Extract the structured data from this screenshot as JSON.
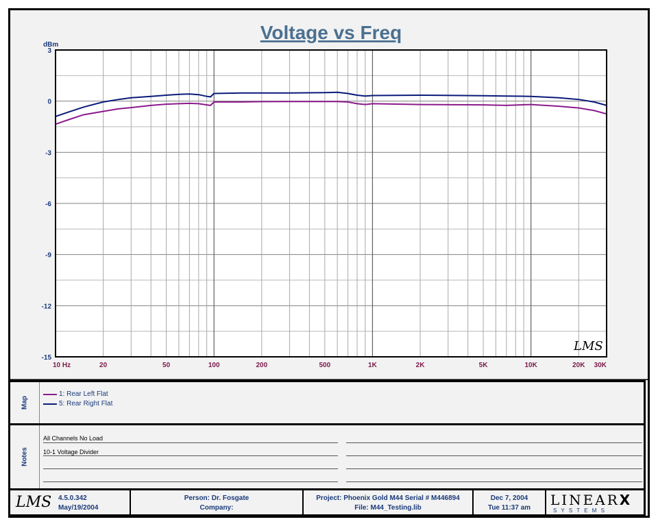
{
  "chart_data": {
    "type": "line",
    "title": "Voltage vs Freq",
    "ylabel": "dBm",
    "xscale": "log",
    "xlim": [
      10,
      30000
    ],
    "ylim": [
      -15,
      3
    ],
    "yticks": [
      3,
      0,
      -3,
      -6,
      -9,
      -12,
      -15
    ],
    "xtick_labels": [
      {
        "value": 10,
        "label": "10  Hz"
      },
      {
        "value": 20,
        "label": "20"
      },
      {
        "value": 50,
        "label": "50"
      },
      {
        "value": 100,
        "label": "100"
      },
      {
        "value": 200,
        "label": "200"
      },
      {
        "value": 500,
        "label": "500"
      },
      {
        "value": 1000,
        "label": "1K"
      },
      {
        "value": 2000,
        "label": "2K"
      },
      {
        "value": 5000,
        "label": "5K"
      },
      {
        "value": 10000,
        "label": "10K"
      },
      {
        "value": 20000,
        "label": "20K"
      },
      {
        "value": 30000,
        "label": "30K"
      }
    ],
    "grid": true,
    "series": [
      {
        "name": "1: Rear Left Flat",
        "color": "#8b1a8b",
        "points": [
          [
            10,
            -1.35
          ],
          [
            12,
            -1.1
          ],
          [
            15,
            -0.8
          ],
          [
            20,
            -0.6
          ],
          [
            25,
            -0.45
          ],
          [
            30,
            -0.38
          ],
          [
            40,
            -0.25
          ],
          [
            50,
            -0.18
          ],
          [
            60,
            -0.15
          ],
          [
            70,
            -0.13
          ],
          [
            80,
            -0.15
          ],
          [
            90,
            -0.22
          ],
          [
            95,
            -0.25
          ],
          [
            100,
            -0.05
          ],
          [
            150,
            -0.05
          ],
          [
            200,
            -0.03
          ],
          [
            300,
            -0.02
          ],
          [
            500,
            -0.02
          ],
          [
            600,
            -0.02
          ],
          [
            700,
            -0.05
          ],
          [
            800,
            -0.15
          ],
          [
            900,
            -0.2
          ],
          [
            1000,
            -0.15
          ],
          [
            2000,
            -0.2
          ],
          [
            5000,
            -0.22
          ],
          [
            7000,
            -0.25
          ],
          [
            10000,
            -0.2
          ],
          [
            15000,
            -0.3
          ],
          [
            20000,
            -0.4
          ],
          [
            25000,
            -0.55
          ],
          [
            30000,
            -0.75
          ]
        ]
      },
      {
        "name": "5: Rear Right Flat",
        "color": "#0a1a7a",
        "points": [
          [
            10,
            -0.9
          ],
          [
            12,
            -0.65
          ],
          [
            15,
            -0.35
          ],
          [
            20,
            -0.05
          ],
          [
            25,
            0.1
          ],
          [
            30,
            0.2
          ],
          [
            40,
            0.28
          ],
          [
            50,
            0.35
          ],
          [
            60,
            0.4
          ],
          [
            70,
            0.42
          ],
          [
            80,
            0.38
          ],
          [
            90,
            0.28
          ],
          [
            95,
            0.25
          ],
          [
            100,
            0.45
          ],
          [
            150,
            0.48
          ],
          [
            200,
            0.48
          ],
          [
            300,
            0.48
          ],
          [
            500,
            0.5
          ],
          [
            600,
            0.52
          ],
          [
            700,
            0.45
          ],
          [
            800,
            0.35
          ],
          [
            900,
            0.3
          ],
          [
            1000,
            0.33
          ],
          [
            2000,
            0.35
          ],
          [
            5000,
            0.32
          ],
          [
            7000,
            0.3
          ],
          [
            10000,
            0.28
          ],
          [
            15000,
            0.2
          ],
          [
            20000,
            0.1
          ],
          [
            25000,
            -0.05
          ],
          [
            30000,
            -0.25
          ]
        ]
      }
    ]
  },
  "legend_label": "Map",
  "notes_label": "Notes",
  "notes": [
    "All Channels No Load",
    "10-1 Voltage Divider"
  ],
  "watermark": "LMS",
  "footer": {
    "logo": "LMS",
    "version": "4.5.0.342",
    "version_date": "May/19/2004",
    "person": "Person: Dr. Fosgate",
    "company": "Company:",
    "project": "Project: Phoenix Gold M44 Serial # M446894",
    "file": "File: M44_Testing.lib",
    "date": "Dec  7, 2004",
    "time": "Tue 11:37 am",
    "brand_main": "LINEAR",
    "brand_x": "X",
    "brand_sub": "S Y S T E M S"
  }
}
